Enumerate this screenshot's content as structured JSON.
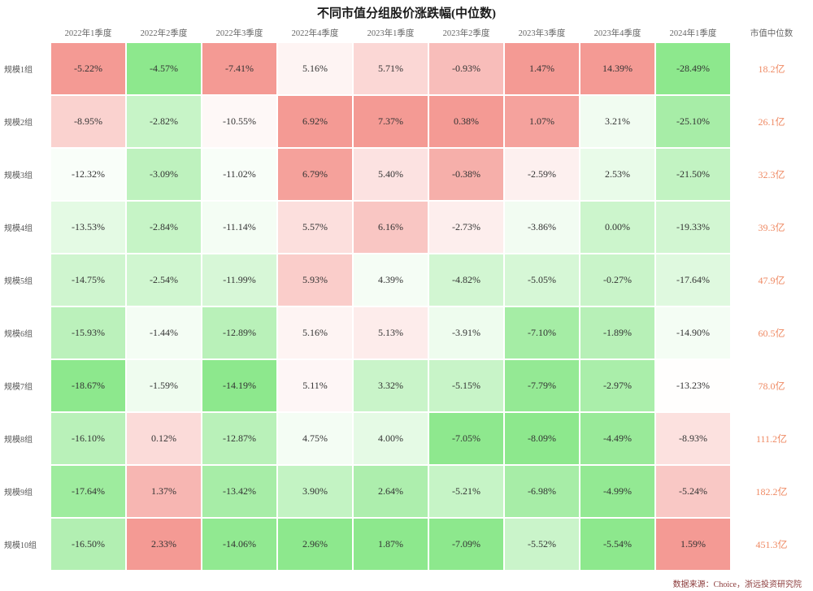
{
  "title": "不同市值分组股价涨跌幅(中位数)",
  "footer": "数据来源：Choice，浙远投资研究院",
  "colors": {
    "header_text": "#666666",
    "value_text": "#333333",
    "label_text": "#555555",
    "footer_text": "#8b3a3a",
    "cap_text": "#ef8a64"
  },
  "chart_data": {
    "type": "heatmap",
    "title": "不同市值分组股价涨跌幅(中位数)",
    "value_format": "percent, two decimals",
    "normalization": "per-column linear: column max = red, column min = green, midpoint = white",
    "columns": [
      "2022年1季度",
      "2022年2季度",
      "2022年3季度",
      "2022年4季度",
      "2023年1季度",
      "2023年2季度",
      "2023年3季度",
      "2023年4季度",
      "2024年1季度"
    ],
    "extra_column": {
      "header": "市值中位数",
      "values_color": "#ef8a64"
    },
    "color_scale": {
      "high_red": "#f49a94",
      "mid_white": "#ffffff",
      "low_green": "#8de88d"
    },
    "rows": [
      {
        "label": "规模1组",
        "values": [
          -5.22,
          -4.57,
          -7.41,
          5.16,
          5.71,
          -0.93,
          1.47,
          14.39,
          -28.49
        ],
        "median_cap": "18.2亿"
      },
      {
        "label": "规模2组",
        "values": [
          -8.95,
          -2.82,
          -10.55,
          6.92,
          7.37,
          0.38,
          1.07,
          3.21,
          -25.1
        ],
        "median_cap": "26.1亿"
      },
      {
        "label": "规模3组",
        "values": [
          -12.32,
          -3.09,
          -11.02,
          6.79,
          5.4,
          -0.38,
          -2.59,
          2.53,
          -21.5
        ],
        "median_cap": "32.3亿"
      },
      {
        "label": "规模4组",
        "values": [
          -13.53,
          -2.84,
          -11.14,
          5.57,
          6.16,
          -2.73,
          -3.86,
          0.0,
          -19.33
        ],
        "median_cap": "39.3亿"
      },
      {
        "label": "规模5组",
        "values": [
          -14.75,
          -2.54,
          -11.99,
          5.93,
          4.39,
          -4.82,
          -5.05,
          -0.27,
          -17.64
        ],
        "median_cap": "47.9亿"
      },
      {
        "label": "规模6组",
        "values": [
          -15.93,
          -1.44,
          -12.89,
          5.16,
          5.13,
          -3.91,
          -7.1,
          -1.89,
          -14.9
        ],
        "median_cap": "60.5亿"
      },
      {
        "label": "规模7组",
        "values": [
          -18.67,
          -1.59,
          -14.19,
          5.11,
          3.32,
          -5.15,
          -7.79,
          -2.97,
          -13.23
        ],
        "median_cap": "78.0亿"
      },
      {
        "label": "规模8组",
        "values": [
          -16.1,
          0.12,
          -12.87,
          4.75,
          4.0,
          -7.05,
          -8.09,
          -4.49,
          -8.93
        ],
        "median_cap": "111.2亿"
      },
      {
        "label": "规模9组",
        "values": [
          -17.64,
          1.37,
          -13.42,
          3.9,
          2.64,
          -5.21,
          -6.98,
          -4.99,
          -5.24
        ],
        "median_cap": "182.2亿"
      },
      {
        "label": "规模10组",
        "values": [
          -16.5,
          2.33,
          -14.06,
          2.96,
          1.87,
          -7.09,
          -5.52,
          -5.54,
          1.59
        ],
        "median_cap": "451.3亿"
      }
    ]
  }
}
